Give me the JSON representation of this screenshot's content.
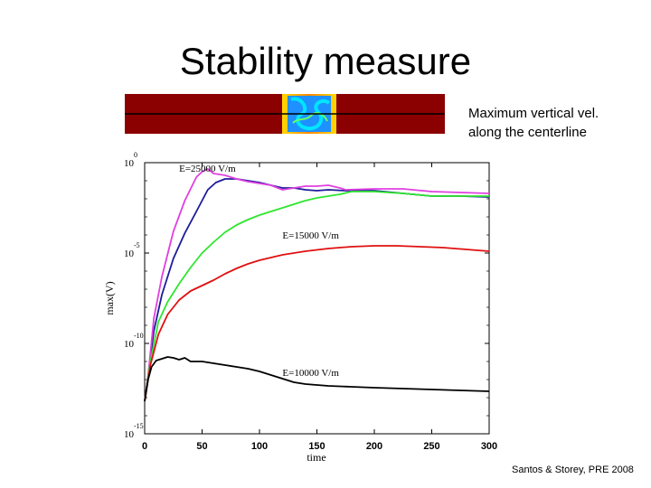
{
  "slide": {
    "title": "Stability measure",
    "caption_line1": "Maximum vertical vel.",
    "caption_line2": "along the centerline",
    "citation": "Santos & Storey, PRE 2008"
  },
  "colors": {
    "strip_background": "#8b0000",
    "strip_center": "#1e90ff",
    "blue_series": "#1c1c9a",
    "magenta_series": "#e040e0",
    "green_series": "#2ee62e",
    "red_series": "#e01010",
    "black_series": "#000000"
  },
  "chart_data": {
    "type": "line",
    "xlabel": "time",
    "ylabel": "max(V)",
    "xlim": [
      0,
      300
    ],
    "ylim": [
      -15,
      0
    ],
    "y_scale": "log10",
    "x_ticks": [
      "0",
      "50",
      "100",
      "150",
      "200",
      "250",
      "300"
    ],
    "y_ticks": [
      {
        "value": 0,
        "base": "10",
        "exp": "0"
      },
      {
        "value": -5,
        "base": "10",
        "exp": "-5"
      },
      {
        "value": -10,
        "base": "10",
        "exp": "-10"
      },
      {
        "value": -15,
        "base": "10",
        "exp": "-15"
      }
    ],
    "annotations": [
      {
        "text": "E=25000 V/m",
        "x": 30,
        "y": -0.5
      },
      {
        "text": "E=15000 V/m",
        "x": 120,
        "y": -4.2
      },
      {
        "text": "E=10000 V/m",
        "x": 120,
        "y": -11.8
      }
    ],
    "series": [
      {
        "color": "#1c1c9a",
        "x": [
          0,
          3,
          8,
          15,
          25,
          35,
          45,
          55,
          62,
          70,
          80,
          90,
          100,
          110,
          120,
          130,
          140,
          150,
          160,
          175,
          200,
          225,
          250,
          275,
          300
        ],
        "y": [
          -13.2,
          -11.8,
          -9.3,
          -7.3,
          -5.3,
          -3.9,
          -2.7,
          -1.5,
          -1.1,
          -0.9,
          -0.9,
          -1.0,
          -1.1,
          -1.25,
          -1.4,
          -1.4,
          -1.5,
          -1.55,
          -1.5,
          -1.55,
          -1.55,
          -1.7,
          -1.85,
          -1.85,
          -1.9
        ]
      },
      {
        "color": "#e040e0",
        "x": [
          0,
          3,
          8,
          15,
          25,
          35,
          45,
          50,
          55,
          60,
          70,
          80,
          90,
          100,
          110,
          120,
          130,
          140,
          150,
          160,
          170,
          175,
          200,
          225,
          250,
          275,
          300
        ],
        "y": [
          -13.2,
          -11.8,
          -8.6,
          -6.3,
          -3.8,
          -2.1,
          -0.8,
          -0.5,
          -0.35,
          -0.6,
          -0.7,
          -0.9,
          -1.05,
          -1.15,
          -1.25,
          -1.5,
          -1.4,
          -1.3,
          -1.3,
          -1.25,
          -1.4,
          -1.5,
          -1.45,
          -1.45,
          -1.6,
          -1.65,
          -1.7
        ]
      },
      {
        "color": "#2ee62e",
        "x": [
          0,
          5,
          12,
          20,
          30,
          40,
          50,
          60,
          70,
          80,
          90,
          100,
          110,
          120,
          130,
          140,
          150,
          170,
          180,
          200,
          225,
          250,
          275,
          300
        ],
        "y": [
          -13.2,
          -11.0,
          -8.8,
          -7.7,
          -6.7,
          -5.8,
          -5.0,
          -4.4,
          -3.85,
          -3.45,
          -3.15,
          -2.9,
          -2.7,
          -2.5,
          -2.3,
          -2.1,
          -1.95,
          -1.75,
          -1.6,
          -1.6,
          -1.7,
          -1.85,
          -1.85,
          -1.85
        ]
      },
      {
        "color": "#e01010",
        "x": [
          0,
          5,
          12,
          20,
          30,
          40,
          50,
          60,
          70,
          80,
          90,
          100,
          120,
          140,
          160,
          180,
          200,
          220,
          240,
          260,
          280,
          300
        ],
        "y": [
          -13.2,
          -11.2,
          -9.5,
          -8.4,
          -7.6,
          -7.1,
          -6.8,
          -6.5,
          -6.15,
          -5.85,
          -5.6,
          -5.4,
          -5.1,
          -4.9,
          -4.75,
          -4.65,
          -4.6,
          -4.6,
          -4.65,
          -4.7,
          -4.8,
          -4.9
        ]
      },
      {
        "color": "#000000",
        "x": [
          0,
          3,
          6,
          10,
          15,
          20,
          25,
          30,
          35,
          40,
          50,
          60,
          70,
          80,
          90,
          100,
          110,
          120,
          130,
          140,
          160,
          180,
          200,
          225,
          250,
          275,
          300
        ],
        "y": [
          -13.2,
          -12.0,
          -11.3,
          -10.95,
          -10.85,
          -10.75,
          -10.8,
          -10.9,
          -10.8,
          -11.0,
          -11.0,
          -11.1,
          -11.2,
          -11.3,
          -11.4,
          -11.55,
          -11.75,
          -11.95,
          -12.15,
          -12.25,
          -12.35,
          -12.4,
          -12.45,
          -12.5,
          -12.55,
          -12.6,
          -12.65
        ]
      }
    ]
  }
}
